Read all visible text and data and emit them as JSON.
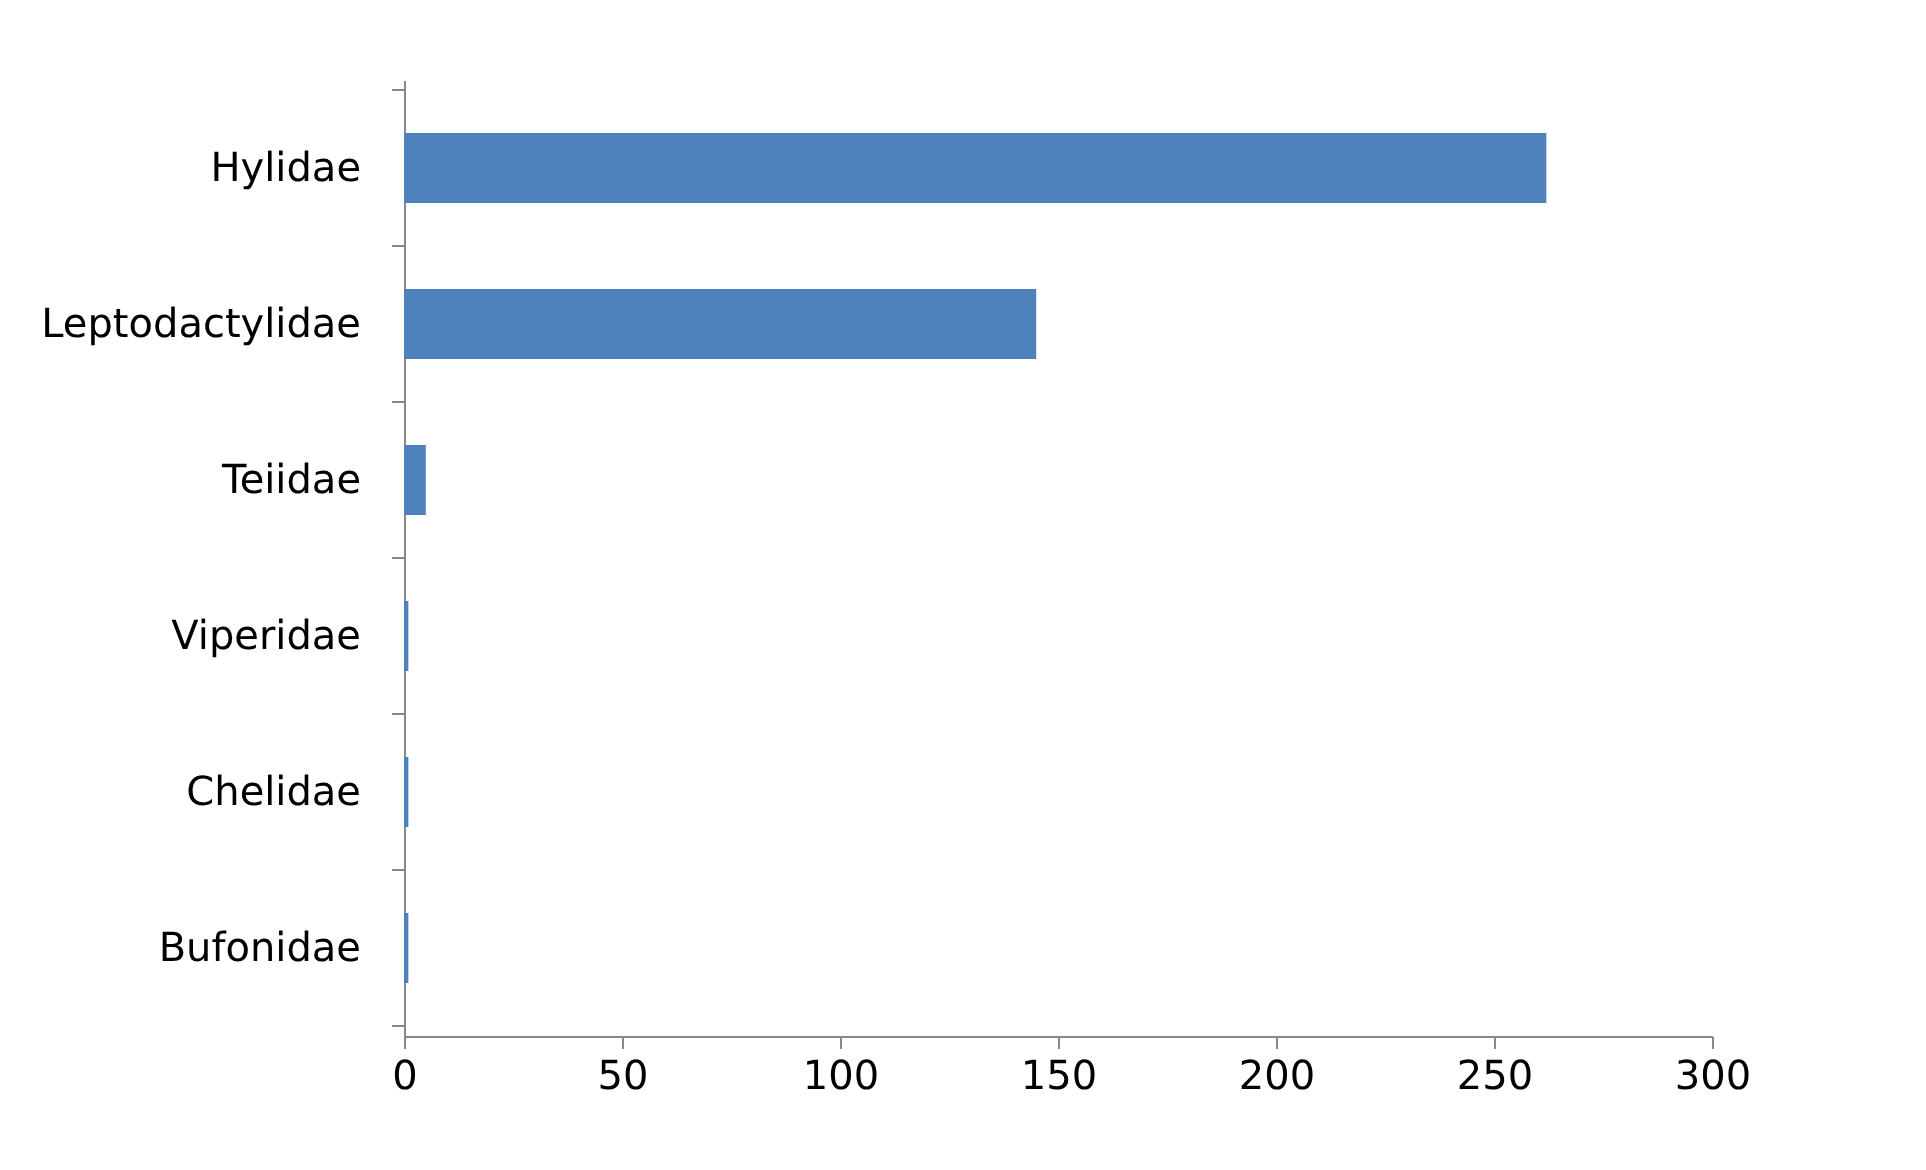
{
  "chart_data": {
    "type": "bar",
    "orientation": "horizontal",
    "categories": [
      "Hylidae",
      "Leptodactylidae",
      "Teiidae",
      "Viperidae",
      "Chelidae",
      "Bufonidae"
    ],
    "values": [
      262,
      145,
      5,
      1,
      1,
      1
    ],
    "color": "#4f81bd",
    "xlim": [
      0,
      300
    ],
    "xticks": [
      0,
      50,
      100,
      150,
      200,
      250,
      300
    ],
    "grid": false
  }
}
